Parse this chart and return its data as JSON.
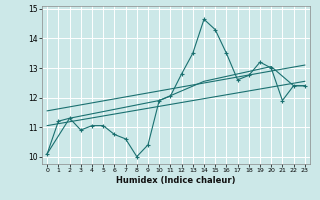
{
  "xlabel": "Humidex (Indice chaleur)",
  "bg_color": "#cce8e8",
  "grid_color": "#ffffff",
  "line_color": "#1a7070",
  "xlim": [
    -0.5,
    23.5
  ],
  "ylim": [
    9.75,
    15.1
  ],
  "yticks": [
    10,
    11,
    12,
    13,
    14,
    15
  ],
  "xticks": [
    0,
    1,
    2,
    3,
    4,
    5,
    6,
    7,
    8,
    9,
    10,
    11,
    12,
    13,
    14,
    15,
    16,
    17,
    18,
    19,
    20,
    21,
    22,
    23
  ],
  "series1_x": [
    0,
    1,
    2,
    3,
    4,
    5,
    6,
    7,
    8,
    9,
    10,
    11,
    12,
    13,
    14,
    15,
    16,
    17,
    18,
    19,
    20,
    21,
    22,
    23
  ],
  "series1_y": [
    10.1,
    11.2,
    11.3,
    10.9,
    11.05,
    11.05,
    10.75,
    10.6,
    10.0,
    10.4,
    11.9,
    12.05,
    12.8,
    13.5,
    14.65,
    14.3,
    13.5,
    12.6,
    12.75,
    13.2,
    13.0,
    11.9,
    12.4,
    12.4
  ],
  "line2_x": [
    0,
    23
  ],
  "line2_y": [
    11.05,
    12.55
  ],
  "line3_x": [
    0,
    23
  ],
  "line3_y": [
    11.55,
    13.1
  ],
  "line4_x": [
    0,
    2,
    10,
    14,
    20,
    22,
    23
  ],
  "line4_y": [
    10.1,
    11.3,
    11.9,
    12.55,
    13.05,
    12.4,
    12.4
  ]
}
